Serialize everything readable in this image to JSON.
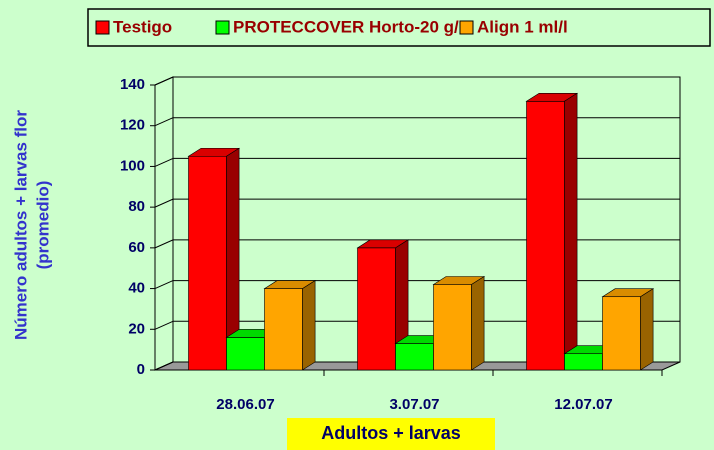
{
  "chart_data": {
    "type": "bar3d",
    "y_label": [
      "Número adultos + larvas flor",
      "(promedio)"
    ],
    "x_label": "Adultos + larvas",
    "categories": [
      "28.06.07",
      "3.07.07",
      "12.07.07"
    ],
    "series": [
      {
        "name": "Testigo",
        "color": "#ff0000",
        "values": [
          105,
          60,
          132
        ]
      },
      {
        "name": "PROTECCOVER Horto-20 g/l",
        "color": "#00ff00",
        "values": [
          16,
          13,
          8
        ]
      },
      {
        "name": "Align 1 ml/l",
        "color": "#ffa500",
        "values": [
          40,
          42,
          36
        ]
      }
    ],
    "ylim": [
      0,
      140
    ],
    "yticks": [
      0,
      20,
      40,
      60,
      80,
      100,
      120,
      140
    ],
    "grid": true
  }
}
